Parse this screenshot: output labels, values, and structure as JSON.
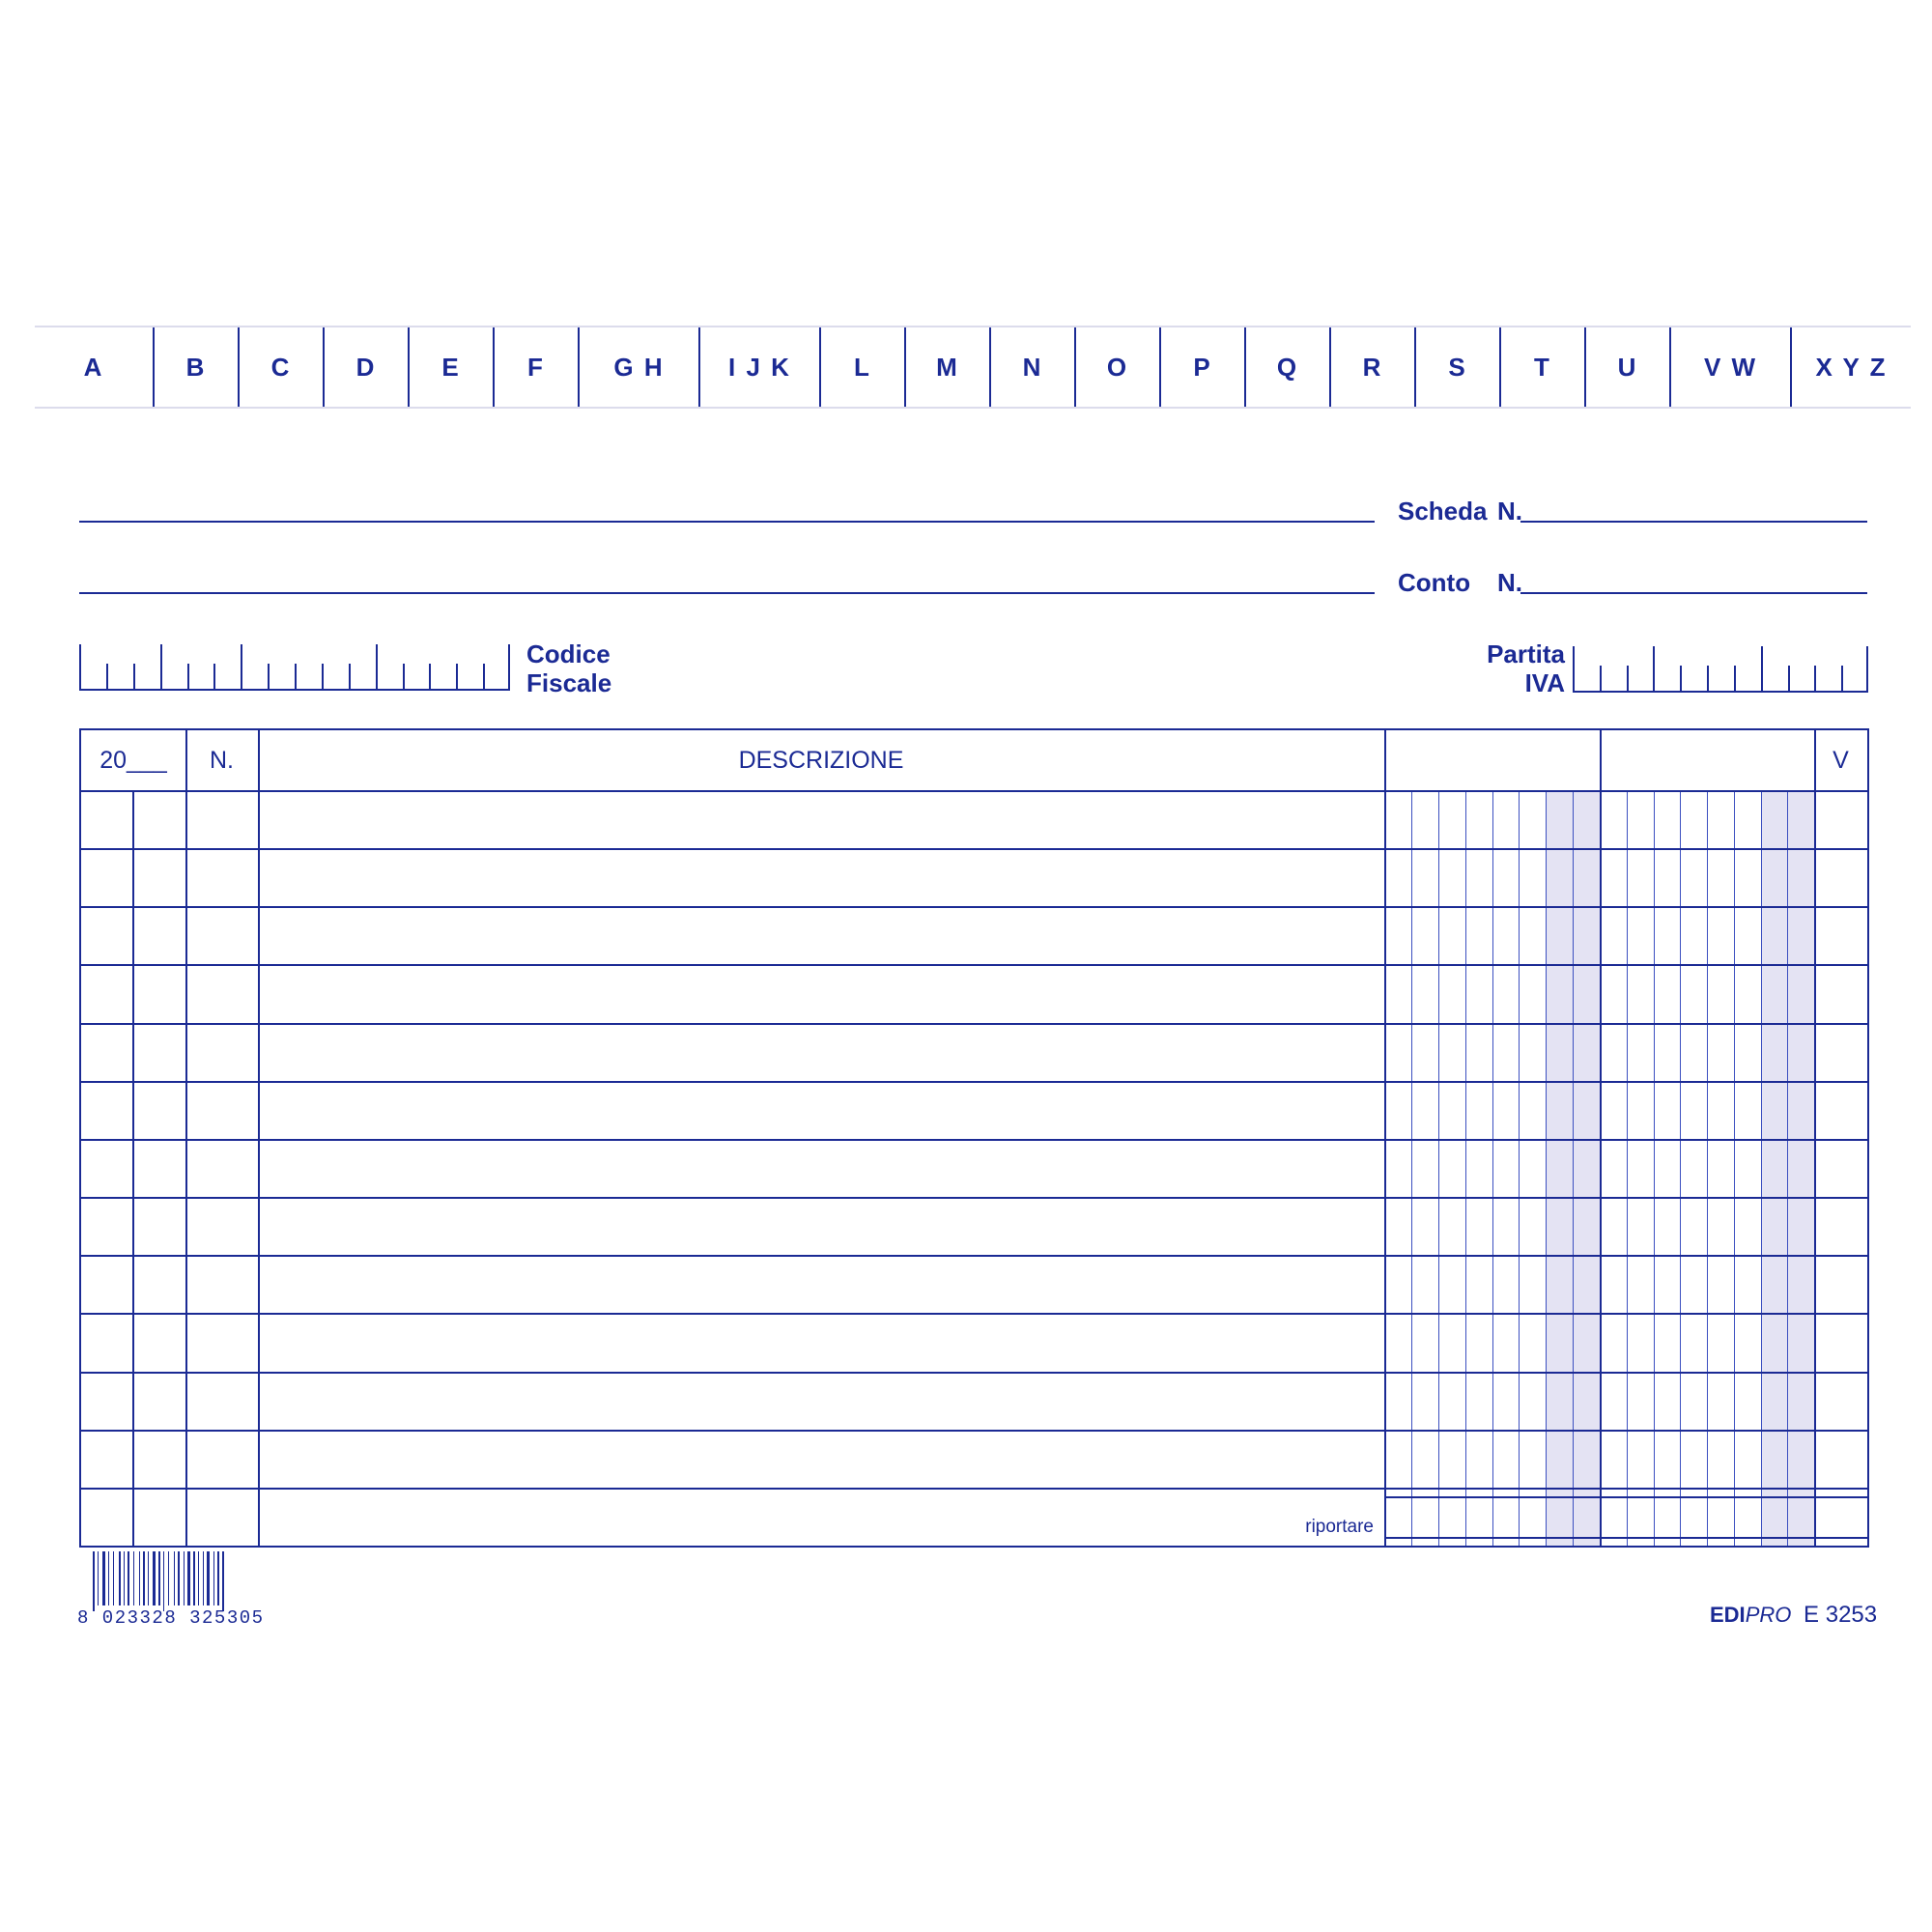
{
  "index_tabs": [
    "A",
    "B",
    "C",
    "D",
    "E",
    "F",
    "G H",
    "I J K",
    "L",
    "M",
    "N",
    "O",
    "P",
    "Q",
    "R",
    "S",
    "T",
    "U",
    "V W",
    "X Y Z"
  ],
  "fields": {
    "scheda_label": "Scheda",
    "scheda_n": "N.",
    "conto_label": "Conto",
    "conto_n": "N.",
    "codice_fiscale_line1": "Codice",
    "codice_fiscale_line2": "Fiscale",
    "partita_iva_line1": "Partita",
    "partita_iva_line2": "IVA"
  },
  "table": {
    "headers": {
      "year": "20___",
      "number": "N.",
      "description": "DESCRIZIONE",
      "check": "V"
    },
    "row_count": 13,
    "footer_label": "riportare"
  },
  "footer": {
    "barcode_digits": "8 023328 325305",
    "brand_bold": "EDI",
    "brand_italic": "PRO",
    "product_code": "E 3253"
  },
  "colors": {
    "ink": "#1b2a94",
    "shade": "#e4e3f3",
    "tab_border": "#dcdcec"
  }
}
